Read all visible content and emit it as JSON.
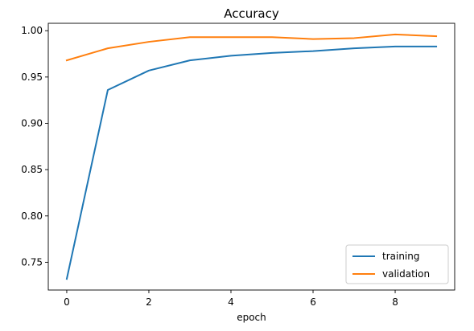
{
  "chart_data": {
    "type": "line",
    "title": "Accuracy",
    "xlabel": "epoch",
    "ylabel": "",
    "x": [
      0,
      1,
      2,
      3,
      4,
      5,
      6,
      7,
      8,
      9
    ],
    "xlim": [
      -0.45,
      9.45
    ],
    "ylim": [
      0.72,
      1.008
    ],
    "xticks": [
      0,
      2,
      4,
      6,
      8
    ],
    "yticks": [
      0.75,
      0.8,
      0.85,
      0.9,
      0.95,
      1.0
    ],
    "xtick_labels": [
      "0",
      "2",
      "4",
      "6",
      "8"
    ],
    "ytick_labels": [
      "0.75",
      "0.80",
      "0.85",
      "0.90",
      "0.95",
      "1.00"
    ],
    "grid": false,
    "legend_position": "lower-right",
    "series": [
      {
        "name": "training",
        "color": "#1f77b4",
        "values": [
          0.732,
          0.936,
          0.957,
          0.968,
          0.973,
          0.976,
          0.978,
          0.981,
          0.983,
          0.983
        ]
      },
      {
        "name": "validation",
        "color": "#ff7f0e",
        "values": [
          0.968,
          0.981,
          0.988,
          0.993,
          0.993,
          0.993,
          0.991,
          0.992,
          0.996,
          0.994
        ]
      }
    ]
  }
}
